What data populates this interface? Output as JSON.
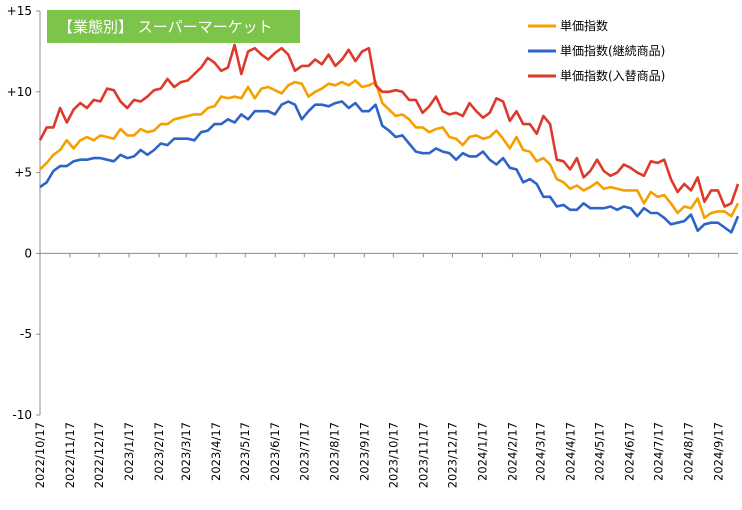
{
  "chart_data": {
    "type": "line",
    "title": "【業態別】 スーパーマーケット",
    "title_bg": "#7cc44a",
    "legend_position": "top-right",
    "ylim": [
      -10,
      15
    ],
    "yticks": [
      -10,
      -5,
      0,
      5,
      10,
      15
    ],
    "ytick_labels": [
      "-10",
      "-5",
      "0",
      "+5",
      "+10",
      "+15"
    ],
    "grid": false,
    "x_start": "2022/10/17",
    "x_end": "2024/10/7",
    "x_tick_labels": [
      "2022/10/17",
      "2022/11/17",
      "2022/12/17",
      "2023/1/17",
      "2023/2/17",
      "2023/3/17",
      "2023/4/17",
      "2023/5/17",
      "2023/6/17",
      "2023/7/17",
      "2023/8/17",
      "2023/9/17",
      "2023/10/17",
      "2023/11/17",
      "2023/12/17",
      "2024/1/17",
      "2024/2/17",
      "2024/3/17",
      "2024/4/17",
      "2024/5/17",
      "2024/6/17",
      "2024/7/17",
      "2024/8/17",
      "2024/9/17"
    ],
    "series": [
      {
        "name": "単価指数",
        "color": "#f5a000",
        "values": [
          5.2,
          5.6,
          6.1,
          6.4,
          7.0,
          6.5,
          7.0,
          7.2,
          7.0,
          7.3,
          7.2,
          7.1,
          7.7,
          7.3,
          7.3,
          7.7,
          7.5,
          7.6,
          8.0,
          8.0,
          8.3,
          8.4,
          8.5,
          8.6,
          8.6,
          9.0,
          9.1,
          9.7,
          9.6,
          9.7,
          9.6,
          10.3,
          9.6,
          10.2,
          10.3,
          10.1,
          9.9,
          10.4,
          10.6,
          10.5,
          9.7,
          10.0,
          10.2,
          10.5,
          10.4,
          10.6,
          10.4,
          10.7,
          10.3,
          10.4,
          10.6,
          9.3,
          8.9,
          8.5,
          8.6,
          8.3,
          7.8,
          7.8,
          7.5,
          7.7,
          7.8,
          7.2,
          7.1,
          6.7,
          7.2,
          7.3,
          7.1,
          7.2,
          7.6,
          7.1,
          6.5,
          7.2,
          6.4,
          6.3,
          5.7,
          5.9,
          5.5,
          4.6,
          4.4,
          4.0,
          4.2,
          3.9,
          4.1,
          4.4,
          4.0,
          4.1,
          4.0,
          3.9,
          3.9,
          3.9,
          3.1,
          3.8,
          3.5,
          3.6,
          3.1,
          2.5,
          2.9,
          2.8,
          3.4,
          2.2,
          2.5,
          2.6,
          2.6,
          2.3,
          3.1
        ]
      },
      {
        "name": "単価指数(継続商品)",
        "color": "#2e64c8",
        "values": [
          4.1,
          4.4,
          5.1,
          5.4,
          5.4,
          5.7,
          5.8,
          5.8,
          5.9,
          5.9,
          5.8,
          5.7,
          6.1,
          5.9,
          6.0,
          6.4,
          6.1,
          6.4,
          6.8,
          6.7,
          7.1,
          7.1,
          7.1,
          7.0,
          7.5,
          7.6,
          8.0,
          8.0,
          8.3,
          8.1,
          8.6,
          8.3,
          8.8,
          8.8,
          8.8,
          8.6,
          9.2,
          9.4,
          9.2,
          8.3,
          8.8,
          9.2,
          9.2,
          9.1,
          9.3,
          9.4,
          9.0,
          9.3,
          8.8,
          8.8,
          9.2,
          7.9,
          7.6,
          7.2,
          7.3,
          6.8,
          6.3,
          6.2,
          6.2,
          6.5,
          6.3,
          6.2,
          5.8,
          6.2,
          6.0,
          6.0,
          6.3,
          5.8,
          5.5,
          5.9,
          5.3,
          5.2,
          4.4,
          4.6,
          4.3,
          3.5,
          3.5,
          2.9,
          3.0,
          2.7,
          2.7,
          3.1,
          2.8,
          2.8,
          2.8,
          2.9,
          2.7,
          2.9,
          2.8,
          2.3,
          2.8,
          2.5,
          2.5,
          2.2,
          1.8,
          1.9,
          2.0,
          2.4,
          1.4,
          1.8,
          1.9,
          1.9,
          1.6,
          1.3,
          2.3
        ]
      },
      {
        "name": "単価指数(入替商品)",
        "color": "#dc3a2a",
        "values": [
          7.0,
          7.8,
          7.8,
          9.0,
          8.1,
          8.9,
          9.3,
          9.0,
          9.5,
          9.4,
          10.2,
          10.1,
          9.4,
          9.0,
          9.5,
          9.4,
          9.7,
          10.1,
          10.2,
          10.8,
          10.3,
          10.6,
          10.7,
          11.1,
          11.5,
          12.1,
          11.8,
          11.3,
          11.5,
          12.9,
          11.1,
          12.5,
          12.7,
          12.3,
          12.0,
          12.4,
          12.7,
          12.3,
          11.3,
          11.6,
          11.6,
          12.0,
          11.7,
          12.3,
          11.6,
          12.0,
          12.6,
          11.9,
          12.5,
          12.7,
          10.4,
          10.0,
          10.0,
          10.1,
          10.0,
          9.5,
          9.5,
          8.7,
          9.1,
          9.7,
          8.8,
          8.6,
          8.7,
          8.5,
          9.3,
          8.8,
          8.4,
          8.7,
          9.6,
          9.4,
          8.2,
          8.8,
          8.0,
          8.0,
          7.4,
          8.5,
          8.0,
          5.8,
          5.7,
          5.2,
          5.9,
          4.7,
          5.1,
          5.8,
          5.1,
          4.8,
          5.0,
          5.5,
          5.3,
          5.0,
          4.8,
          5.7,
          5.6,
          5.8,
          4.6,
          3.8,
          4.3,
          3.9,
          4.7,
          3.2,
          3.9,
          3.9,
          2.9,
          3.1,
          4.3
        ]
      }
    ]
  }
}
